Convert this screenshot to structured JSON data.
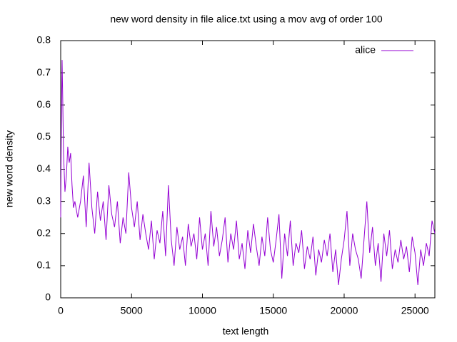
{
  "chart_data": {
    "type": "line",
    "title": "new word density in file alice.txt using a mov avg of order 100",
    "xlabel": "text length",
    "ylabel": "new word density",
    "x": [
      0,
      50,
      100,
      150,
      200,
      300,
      400,
      500,
      600,
      700,
      800,
      900,
      1000,
      1200,
      1400,
      1600,
      1800,
      2000,
      2200,
      2400,
      2600,
      2800,
      3000,
      3200,
      3400,
      3600,
      3800,
      4000,
      4200,
      4400,
      4600,
      4800,
      5000,
      5200,
      5400,
      5600,
      5800,
      6000,
      6200,
      6400,
      6600,
      6800,
      7000,
      7200,
      7400,
      7600,
      7800,
      8000,
      8200,
      8400,
      8600,
      8800,
      9000,
      9200,
      9400,
      9600,
      9800,
      10000,
      10200,
      10400,
      10600,
      10800,
      11000,
      11200,
      11400,
      11600,
      11800,
      12000,
      12200,
      12400,
      12600,
      12800,
      13000,
      13200,
      13400,
      13600,
      13800,
      14000,
      14200,
      14400,
      14600,
      14800,
      15000,
      15200,
      15400,
      15600,
      15800,
      16000,
      16200,
      16400,
      16600,
      16800,
      17000,
      17200,
      17400,
      17600,
      17800,
      18000,
      18200,
      18400,
      18600,
      18800,
      19000,
      19200,
      19400,
      19600,
      19800,
      20000,
      20200,
      20400,
      20600,
      20800,
      21000,
      21200,
      21400,
      21600,
      21800,
      22000,
      22200,
      22400,
      22600,
      22800,
      23000,
      23200,
      23400,
      23600,
      23800,
      24000,
      24200,
      24400,
      24600,
      24800,
      25000,
      25200,
      25400,
      25600,
      25800,
      26000,
      26200,
      26400
    ],
    "series": [
      {
        "name": "alice",
        "color": "#9400d3",
        "values": [
          0.25,
          0.55,
          0.74,
          0.6,
          0.45,
          0.33,
          0.38,
          0.47,
          0.42,
          0.45,
          0.35,
          0.28,
          0.3,
          0.25,
          0.3,
          0.38,
          0.22,
          0.42,
          0.28,
          0.2,
          0.33,
          0.24,
          0.3,
          0.18,
          0.35,
          0.26,
          0.22,
          0.3,
          0.17,
          0.25,
          0.2,
          0.39,
          0.28,
          0.22,
          0.3,
          0.18,
          0.26,
          0.2,
          0.15,
          0.24,
          0.12,
          0.21,
          0.17,
          0.27,
          0.13,
          0.35,
          0.18,
          0.1,
          0.22,
          0.15,
          0.19,
          0.1,
          0.23,
          0.16,
          0.2,
          0.12,
          0.25,
          0.15,
          0.2,
          0.1,
          0.27,
          0.16,
          0.22,
          0.13,
          0.18,
          0.25,
          0.11,
          0.2,
          0.15,
          0.24,
          0.12,
          0.17,
          0.09,
          0.21,
          0.14,
          0.23,
          0.16,
          0.1,
          0.19,
          0.13,
          0.25,
          0.15,
          0.11,
          0.18,
          0.26,
          0.06,
          0.2,
          0.13,
          0.24,
          0.1,
          0.17,
          0.14,
          0.21,
          0.09,
          0.16,
          0.12,
          0.19,
          0.07,
          0.15,
          0.11,
          0.18,
          0.13,
          0.2,
          0.08,
          0.15,
          0.04,
          0.12,
          0.18,
          0.27,
          0.1,
          0.2,
          0.15,
          0.12,
          0.06,
          0.18,
          0.3,
          0.14,
          0.22,
          0.1,
          0.17,
          0.05,
          0.2,
          0.13,
          0.21,
          0.09,
          0.15,
          0.11,
          0.18,
          0.12,
          0.16,
          0.08,
          0.19,
          0.14,
          0.04,
          0.15,
          0.1,
          0.17,
          0.13,
          0.24,
          0.2
        ]
      }
    ],
    "xlim": [
      0,
      26400
    ],
    "ylim": [
      0,
      0.8
    ],
    "xticks": [
      0,
      5000,
      10000,
      15000,
      20000,
      25000
    ],
    "yticks": [
      0,
      0.1,
      0.2,
      0.3,
      0.4,
      0.5,
      0.6,
      0.7,
      0.8
    ],
    "legend": "top-right"
  }
}
